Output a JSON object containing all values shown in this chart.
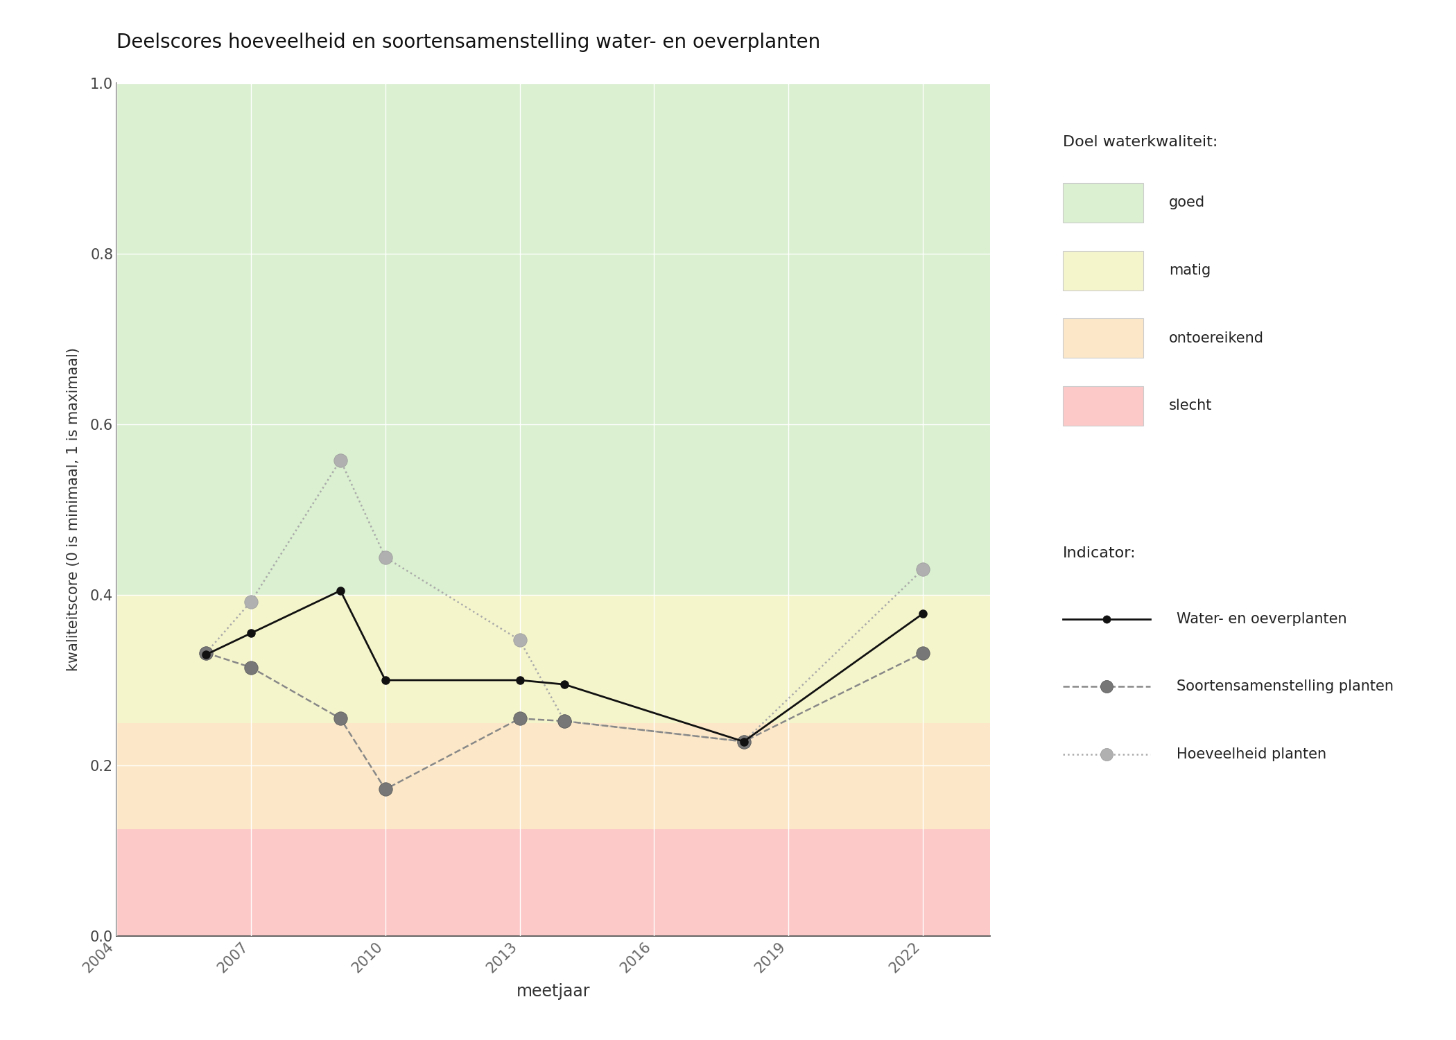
{
  "title": "Deelscores hoeveelheid en soortensamenstelling water- en oeverplanten",
  "xlabel": "meetjaar",
  "ylabel": "kwaliteitscore (0 is minimaal, 1 is maximaal)",
  "xlim": [
    2004,
    2023.5
  ],
  "ylim": [
    0.0,
    1.0
  ],
  "xticks": [
    2004,
    2007,
    2010,
    2013,
    2016,
    2019,
    2022
  ],
  "yticks": [
    0.0,
    0.2,
    0.4,
    0.6,
    0.8,
    1.0
  ],
  "background_color": "#ffffff",
  "bg_zones": [
    {
      "name": "goed",
      "ymin": 0.4,
      "ymax": 1.0,
      "color": "#daf0d0"
    },
    {
      "name": "matig",
      "ymin": 0.25,
      "ymax": 0.4,
      "color": "#f5f5cc"
    },
    {
      "name": "ontoereikend",
      "ymin": 0.125,
      "ymax": 0.25,
      "color": "#fce8c8"
    },
    {
      "name": "slecht",
      "ymin": 0.0,
      "ymax": 0.125,
      "color": "#fcc8c8"
    }
  ],
  "legend_colors": {
    "goed": "#daf0d0",
    "matig": "#f5f5cc",
    "ontoereikend": "#fce8c8",
    "slecht": "#fcc8c8"
  },
  "water_oever": {
    "years": [
      2006,
      2007,
      2009,
      2010,
      2013,
      2014,
      2018,
      2022
    ],
    "values": [
      0.33,
      0.355,
      0.405,
      0.3,
      0.3,
      0.295,
      0.228,
      0.378
    ],
    "color": "#111111",
    "linestyle": "-",
    "linewidth": 2.0,
    "markersize": 8,
    "marker": "o",
    "label": "Water- en oeverplanten"
  },
  "soortensamenstelling": {
    "years": [
      2006,
      2007,
      2009,
      2010,
      2013,
      2014,
      2018,
      2022
    ],
    "values": [
      0.332,
      0.315,
      0.255,
      0.172,
      0.255,
      0.252,
      0.228,
      0.332
    ],
    "color": "#888888",
    "linestyle": "--",
    "linewidth": 1.8,
    "markersize": 14,
    "marker": "o",
    "label": "Soortensamenstelling planten"
  },
  "hoeveelheid": {
    "years": [
      2006,
      2007,
      2009,
      2010,
      2013,
      2014,
      2018,
      2022
    ],
    "values": [
      0.332,
      0.392,
      0.558,
      0.444,
      0.347,
      0.252,
      0.228,
      0.43
    ],
    "color": "#aaaaaa",
    "linestyle": ":",
    "linewidth": 1.8,
    "markersize": 14,
    "marker": "o",
    "label": "Hoeveelheid planten"
  },
  "legend_doel_title": "Doel waterkwaliteit:",
  "legend_indicator_title": "Indicator:",
  "figsize": [
    21.0,
    15.0
  ],
  "dpi": 100
}
